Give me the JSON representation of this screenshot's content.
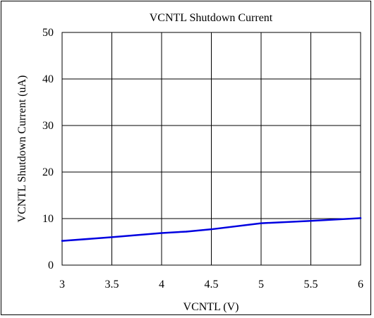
{
  "chart_data": {
    "type": "line",
    "title": "VCNTL Shutdown Current",
    "xlabel": "VCNTL (V)",
    "ylabel": "VCNTL Shutdown Current (uA)",
    "xlim": [
      3,
      6
    ],
    "ylim": [
      0,
      50
    ],
    "x_ticks": [
      3,
      3.5,
      4,
      4.5,
      5,
      5.5,
      6
    ],
    "x_tick_labels": [
      "3",
      "3.5",
      "4",
      "4.5",
      "5",
      "5.5",
      "6"
    ],
    "y_ticks": [
      0,
      10,
      20,
      30,
      40,
      50
    ],
    "y_tick_labels": [
      "0",
      "10",
      "20",
      "30",
      "40",
      "50"
    ],
    "grid": true,
    "series": [
      {
        "color": "#0000e0",
        "x": [
          3.0,
          3.5,
          4.0,
          4.25,
          4.5,
          5.0,
          5.5,
          6.0
        ],
        "y": [
          5.2,
          6.0,
          6.9,
          7.2,
          7.7,
          9.0,
          9.5,
          10.1
        ]
      }
    ]
  }
}
